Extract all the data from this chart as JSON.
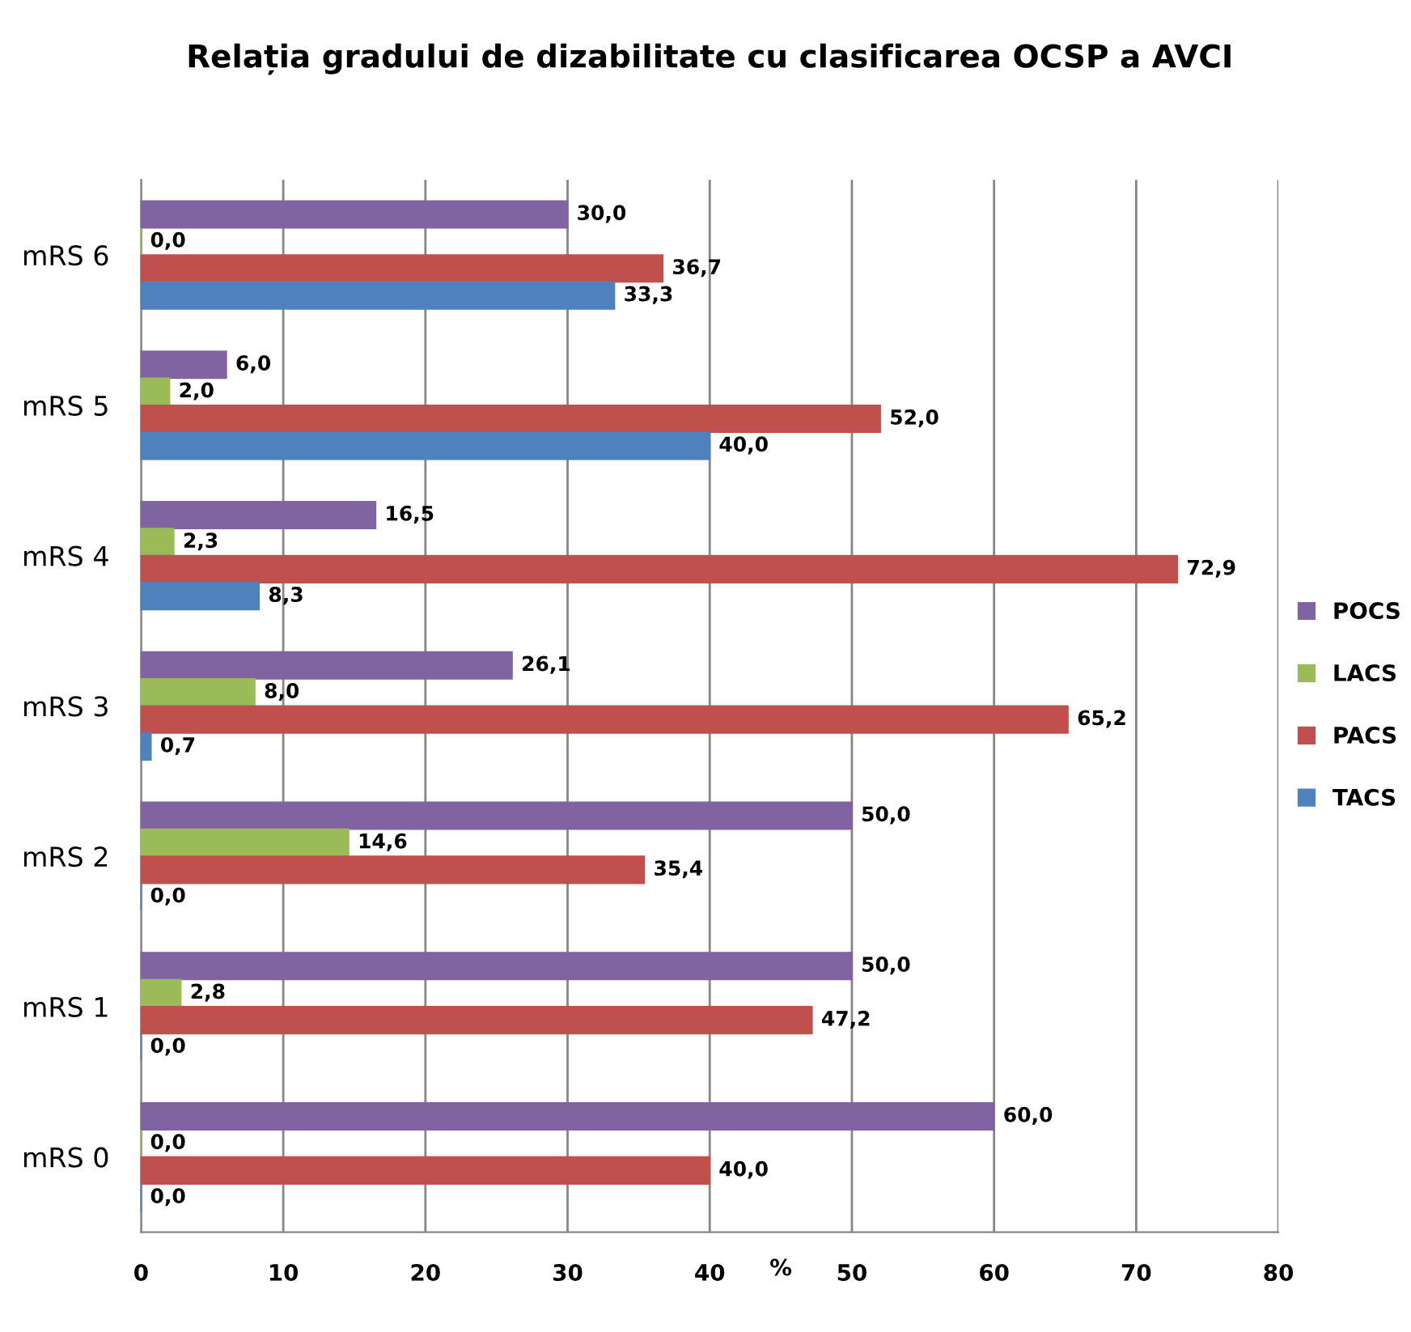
{
  "chart_data": {
    "type": "bar",
    "orientation": "horizontal",
    "title": "Relația gradului de dizabilitate cu clasificarea OCSP a AVCI",
    "xlabel": "%",
    "categories": [
      "mRS 6",
      "mRS 5",
      "mRS 4",
      "mRS 3",
      "mRS 2",
      "mRS 1",
      "mRS 0"
    ],
    "series": [
      {
        "name": "POCS",
        "color": "#8064a2",
        "values": [
          30.0,
          6.0,
          16.5,
          26.1,
          50.0,
          50.0,
          60.0
        ],
        "value_labels": [
          "30,0",
          "6,0",
          "16,5",
          "26,1",
          "50,0",
          "50,0",
          "60,0"
        ]
      },
      {
        "name": "LACS",
        "color": "#9bbb59",
        "values": [
          0.0,
          2.0,
          2.3,
          8.0,
          14.6,
          2.8,
          0.0
        ],
        "value_labels": [
          "0,0",
          "2,0",
          "2,3",
          "8,0",
          "14,6",
          "2,8",
          "0,0"
        ]
      },
      {
        "name": "PACS",
        "color": "#c0504d",
        "values": [
          36.7,
          52.0,
          72.9,
          65.2,
          35.4,
          47.2,
          40.0
        ],
        "value_labels": [
          "36,7",
          "52,0",
          "72,9",
          "65,2",
          "35,4",
          "47,2",
          "40,0"
        ]
      },
      {
        "name": "TACS",
        "color": "#4f81bd",
        "values": [
          33.3,
          40.0,
          8.3,
          0.7,
          0.0,
          0.0,
          0.0
        ],
        "value_labels": [
          "33,3",
          "40,0",
          "8,3",
          "0,7",
          "0,0",
          "0,0",
          "0,0"
        ]
      }
    ],
    "xlim": [
      0,
      80
    ],
    "xticks": [
      0,
      10,
      20,
      30,
      40,
      50,
      60,
      70,
      80
    ],
    "grid": "x",
    "legend": "right"
  }
}
